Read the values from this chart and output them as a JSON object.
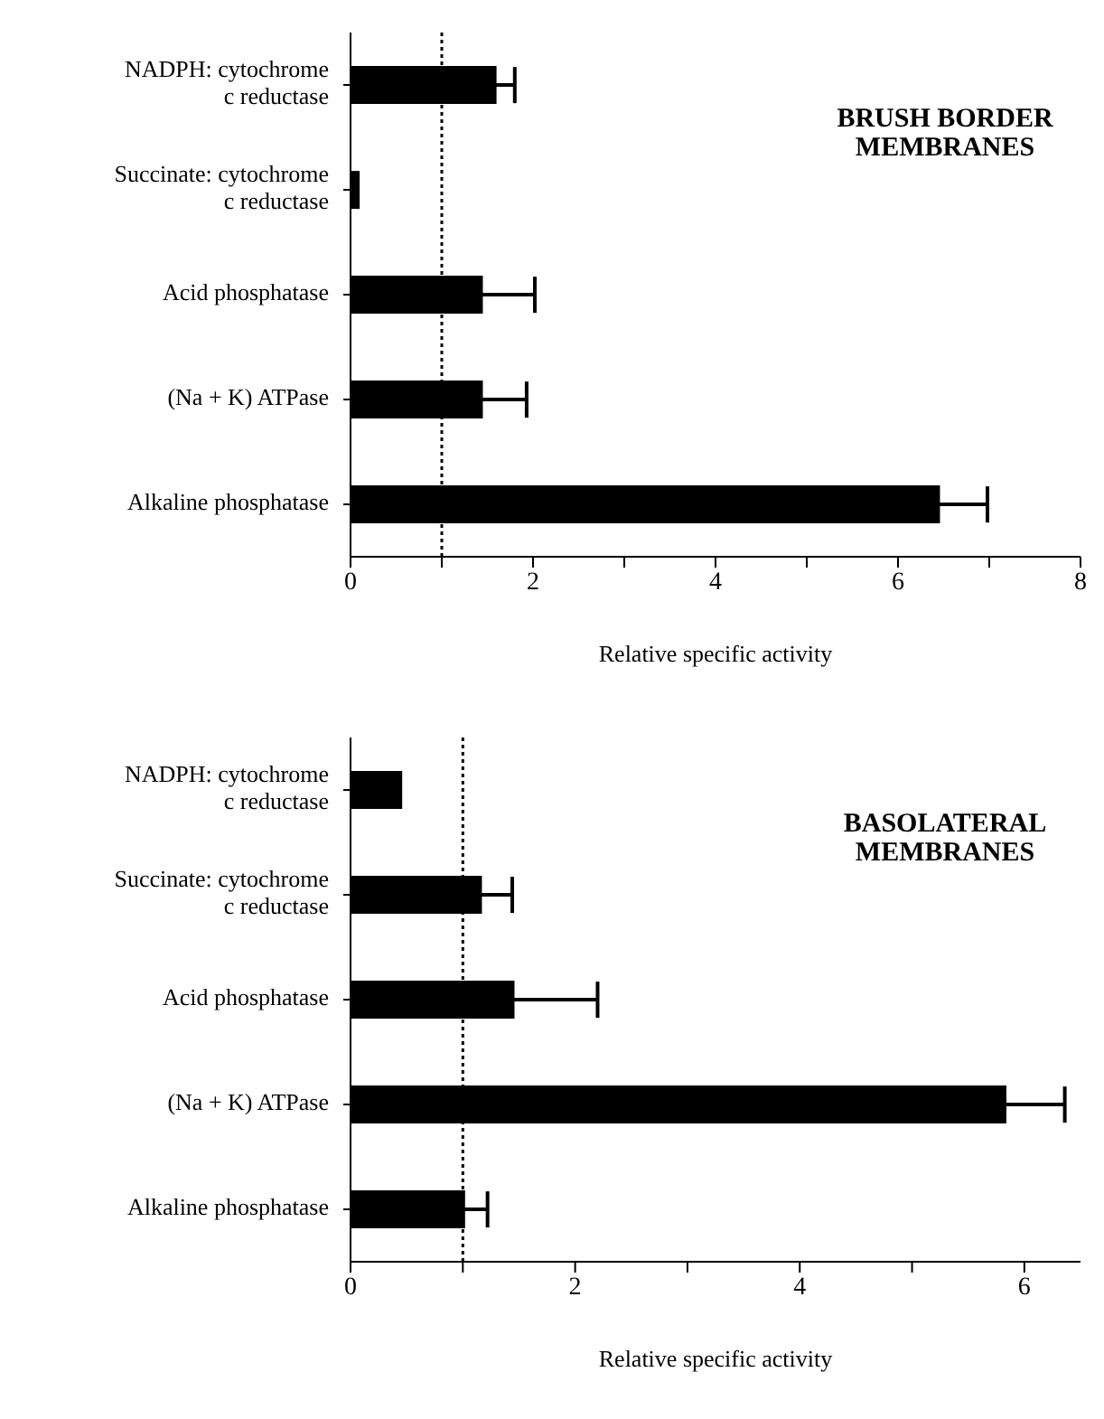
{
  "chart_data": [
    {
      "type": "bar",
      "orientation": "horizontal",
      "categories": [
        "NADPH: cytochrome\nc reductase",
        "Succinate: cytochrome\nc reductase",
        "Acid phosphatase",
        "(Na + K) ATPase",
        "Alkaline phosphatase"
      ],
      "values": [
        1.6,
        0.1,
        1.45,
        1.45,
        6.46
      ],
      "errors": [
        0.2,
        null,
        0.57,
        0.48,
        0.52
      ],
      "color": "#000000",
      "xlim": [
        0,
        8
      ],
      "xticks": [
        0,
        {
          "value": 1,
          "label": null
        },
        2,
        {
          "value": 3,
          "label": null
        },
        4,
        {
          "value": 5,
          "label": null
        },
        6,
        {
          "value": 7,
          "label": null
        },
        8
      ],
      "xlabel": "Relative specific activity",
      "ref_lines": [
        {
          "axis": "x",
          "value": 1,
          "line_style": "dotted"
        }
      ],
      "annotations": [
        "BRUSH BORDER\nMEMBRANES"
      ],
      "grid": false,
      "legend": false
    },
    {
      "type": "bar",
      "orientation": "horizontal",
      "categories": [
        "NADPH: cytochrome\nc reductase",
        "Succinate: cytochrome\nc reductase",
        "Acid phosphatase",
        "(Na + K) ATPase",
        "Alkaline phosphatase"
      ],
      "values": [
        0.46,
        1.17,
        1.46,
        5.84,
        1.02
      ],
      "errors": [
        null,
        0.27,
        0.74,
        0.52,
        0.2
      ],
      "color": "#000000",
      "xlim": [
        0,
        6.5
      ],
      "xticks": [
        0,
        {
          "value": 1,
          "label": null
        },
        2,
        {
          "value": 3,
          "label": null
        },
        4,
        {
          "value": 5,
          "label": null
        },
        6
      ],
      "xlabel": "Relative specific activity",
      "ref_lines": [
        {
          "axis": "x",
          "value": 1,
          "line_style": "dotted"
        }
      ],
      "annotations": [
        "BASOLATERAL\nMEMBRANES"
      ],
      "grid": false,
      "legend": false
    }
  ]
}
